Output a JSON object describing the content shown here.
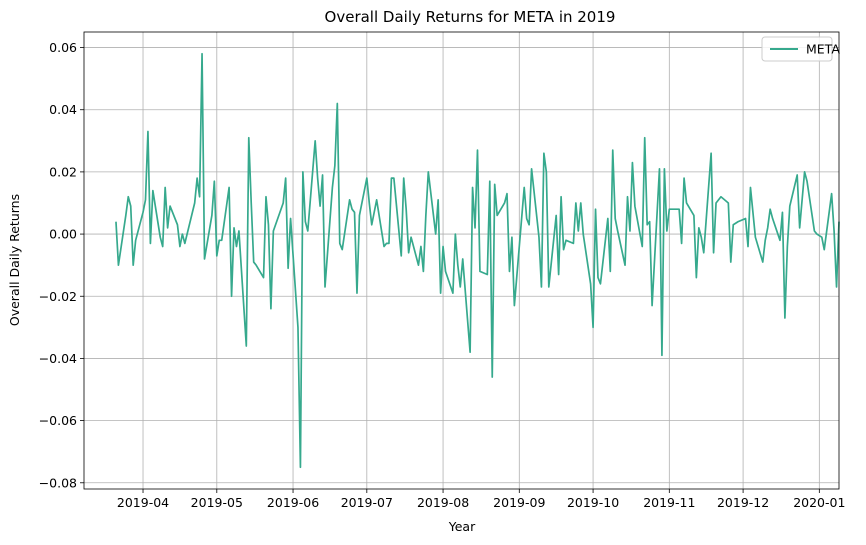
{
  "chart_data": {
    "type": "line",
    "title": "Overall Daily Returns for META in 2019",
    "xlabel": "Year",
    "ylabel": "Overall Daily Returns",
    "xlim": [
      "2019-03-08",
      "2020-01-09"
    ],
    "ylim": [
      -0.082,
      0.065
    ],
    "x_ticks": [
      "2019-04-01",
      "2019-05-01",
      "2019-06-01",
      "2019-07-01",
      "2019-08-01",
      "2019-09-01",
      "2019-10-01",
      "2019-11-01",
      "2019-12-01",
      "2020-01-01"
    ],
    "x_tick_labels": [
      "2019-04",
      "2019-05",
      "2019-06",
      "2019-07",
      "2019-08",
      "2019-09",
      "2019-10",
      "2019-11",
      "2019-12",
      "2020-01"
    ],
    "y_ticks": [
      -0.08,
      -0.06,
      -0.04,
      -0.02,
      0.0,
      0.02,
      0.04,
      0.06
    ],
    "y_tick_labels": [
      "−0.08",
      "−0.06",
      "−0.04",
      "−0.02",
      "0.00",
      "0.02",
      "0.04",
      "0.06"
    ],
    "grid": true,
    "legend": "top-right",
    "series": [
      {
        "name": "META",
        "color": "#36a98d",
        "points": [
          [
            "2019-03-21",
            0.004
          ],
          [
            "2019-03-22",
            -0.01
          ],
          [
            "2019-03-25",
            0.006
          ],
          [
            "2019-03-26",
            0.012
          ],
          [
            "2019-03-27",
            0.009
          ],
          [
            "2019-03-28",
            -0.01
          ],
          [
            "2019-03-29",
            -0.002
          ],
          [
            "2019-04-01",
            0.007
          ],
          [
            "2019-04-02",
            0.011
          ],
          [
            "2019-04-03",
            0.033
          ],
          [
            "2019-04-04",
            -0.003
          ],
          [
            "2019-04-05",
            0.014
          ],
          [
            "2019-04-08",
            -0.001
          ],
          [
            "2019-04-09",
            -0.004
          ],
          [
            "2019-04-10",
            0.015
          ],
          [
            "2019-04-11",
            0.002
          ],
          [
            "2019-04-12",
            0.009
          ],
          [
            "2019-04-15",
            0.003
          ],
          [
            "2019-04-16",
            -0.004
          ],
          [
            "2019-04-17",
            0.0
          ],
          [
            "2019-04-18",
            -0.003
          ],
          [
            "2019-04-22",
            0.01
          ],
          [
            "2019-04-23",
            0.018
          ],
          [
            "2019-04-24",
            0.012
          ],
          [
            "2019-04-25",
            0.058
          ],
          [
            "2019-04-26",
            -0.008
          ],
          [
            "2019-04-29",
            0.006
          ],
          [
            "2019-04-30",
            0.017
          ],
          [
            "2019-05-01",
            -0.007
          ],
          [
            "2019-05-02",
            -0.002
          ],
          [
            "2019-05-03",
            -0.002
          ],
          [
            "2019-05-06",
            0.015
          ],
          [
            "2019-05-07",
            -0.02
          ],
          [
            "2019-05-08",
            0.002
          ],
          [
            "2019-05-09",
            -0.004
          ],
          [
            "2019-05-10",
            0.001
          ],
          [
            "2019-05-13",
            -0.036
          ],
          [
            "2019-05-14",
            0.031
          ],
          [
            "2019-05-15",
            0.01
          ],
          [
            "2019-05-16",
            -0.009
          ],
          [
            "2019-05-17",
            -0.01
          ],
          [
            "2019-05-20",
            -0.014
          ],
          [
            "2019-05-21",
            0.012
          ],
          [
            "2019-05-22",
            0.003
          ],
          [
            "2019-05-23",
            -0.024
          ],
          [
            "2019-05-24",
            0.001
          ],
          [
            "2019-05-28",
            0.01
          ],
          [
            "2019-05-29",
            0.018
          ],
          [
            "2019-05-30",
            -0.011
          ],
          [
            "2019-05-31",
            0.005
          ],
          [
            "2019-06-03",
            -0.03
          ],
          [
            "2019-06-04",
            -0.075
          ],
          [
            "2019-06-05",
            0.02
          ],
          [
            "2019-06-06",
            0.004
          ],
          [
            "2019-06-07",
            0.001
          ],
          [
            "2019-06-10",
            0.03
          ],
          [
            "2019-06-11",
            0.018
          ],
          [
            "2019-06-12",
            0.009
          ],
          [
            "2019-06-13",
            0.019
          ],
          [
            "2019-06-14",
            -0.017
          ],
          [
            "2019-06-17",
            0.015
          ],
          [
            "2019-06-18",
            0.022
          ],
          [
            "2019-06-19",
            0.042
          ],
          [
            "2019-06-20",
            -0.003
          ],
          [
            "2019-06-21",
            -0.005
          ],
          [
            "2019-06-24",
            0.011
          ],
          [
            "2019-06-25",
            0.008
          ],
          [
            "2019-06-26",
            0.007
          ],
          [
            "2019-06-27",
            -0.019
          ],
          [
            "2019-06-28",
            0.006
          ],
          [
            "2019-07-01",
            0.018
          ],
          [
            "2019-07-02",
            0.01
          ],
          [
            "2019-07-03",
            0.003
          ],
          [
            "2019-07-05",
            0.011
          ],
          [
            "2019-07-08",
            -0.004
          ],
          [
            "2019-07-09",
            -0.003
          ],
          [
            "2019-07-10",
            -0.003
          ],
          [
            "2019-07-11",
            0.018
          ],
          [
            "2019-07-12",
            0.018
          ],
          [
            "2019-07-15",
            -0.007
          ],
          [
            "2019-07-16",
            0.018
          ],
          [
            "2019-07-17",
            0.008
          ],
          [
            "2019-07-18",
            -0.006
          ],
          [
            "2019-07-19",
            -0.001
          ],
          [
            "2019-07-22",
            -0.01
          ],
          [
            "2019-07-23",
            -0.004
          ],
          [
            "2019-07-24",
            -0.012
          ],
          [
            "2019-07-25",
            0.006
          ],
          [
            "2019-07-26",
            0.02
          ],
          [
            "2019-07-29",
            0.0
          ],
          [
            "2019-07-30",
            0.011
          ],
          [
            "2019-07-31",
            -0.019
          ],
          [
            "2019-08-01",
            -0.004
          ],
          [
            "2019-08-02",
            -0.012
          ],
          [
            "2019-08-05",
            -0.019
          ],
          [
            "2019-08-06",
            0.0
          ],
          [
            "2019-08-07",
            -0.01
          ],
          [
            "2019-08-08",
            -0.017
          ],
          [
            "2019-08-09",
            -0.008
          ],
          [
            "2019-08-12",
            -0.038
          ],
          [
            "2019-08-13",
            0.015
          ],
          [
            "2019-08-14",
            0.002
          ],
          [
            "2019-08-15",
            0.027
          ],
          [
            "2019-08-16",
            -0.012
          ],
          [
            "2019-08-19",
            -0.013
          ],
          [
            "2019-08-20",
            0.017
          ],
          [
            "2019-08-21",
            -0.046
          ],
          [
            "2019-08-22",
            0.016
          ],
          [
            "2019-08-23",
            0.006
          ],
          [
            "2019-08-26",
            0.01
          ],
          [
            "2019-08-27",
            0.013
          ],
          [
            "2019-08-28",
            -0.012
          ],
          [
            "2019-08-29",
            -0.001
          ],
          [
            "2019-08-30",
            -0.023
          ],
          [
            "2019-09-03",
            0.015
          ],
          [
            "2019-09-04",
            0.005
          ],
          [
            "2019-09-05",
            0.003
          ],
          [
            "2019-09-06",
            0.021
          ],
          [
            "2019-09-09",
            -0.001
          ],
          [
            "2019-09-10",
            -0.017
          ],
          [
            "2019-09-11",
            0.026
          ],
          [
            "2019-09-12",
            0.02
          ],
          [
            "2019-09-13",
            -0.017
          ],
          [
            "2019-09-16",
            0.006
          ],
          [
            "2019-09-17",
            -0.013
          ],
          [
            "2019-09-18",
            0.012
          ],
          [
            "2019-09-19",
            -0.005
          ],
          [
            "2019-09-20",
            -0.002
          ],
          [
            "2019-09-23",
            -0.003
          ],
          [
            "2019-09-24",
            0.01
          ],
          [
            "2019-09-25",
            0.001
          ],
          [
            "2019-09-26",
            0.01
          ],
          [
            "2019-09-27",
            0.0
          ],
          [
            "2019-09-30",
            -0.016
          ],
          [
            "2019-10-01",
            -0.03
          ],
          [
            "2019-10-02",
            0.008
          ],
          [
            "2019-10-03",
            -0.014
          ],
          [
            "2019-10-04",
            -0.016
          ],
          [
            "2019-10-07",
            0.005
          ],
          [
            "2019-10-08",
            -0.012
          ],
          [
            "2019-10-09",
            0.027
          ],
          [
            "2019-10-10",
            0.005
          ],
          [
            "2019-10-11",
            0.001
          ],
          [
            "2019-10-14",
            -0.01
          ],
          [
            "2019-10-15",
            0.012
          ],
          [
            "2019-10-16",
            0.001
          ],
          [
            "2019-10-17",
            0.023
          ],
          [
            "2019-10-18",
            0.009
          ],
          [
            "2019-10-21",
            -0.004
          ],
          [
            "2019-10-22",
            0.031
          ],
          [
            "2019-10-23",
            0.003
          ],
          [
            "2019-10-24",
            0.004
          ],
          [
            "2019-10-25",
            -0.023
          ],
          [
            "2019-10-28",
            0.021
          ],
          [
            "2019-10-29",
            -0.039
          ],
          [
            "2019-10-30",
            0.021
          ],
          [
            "2019-10-31",
            0.001
          ],
          [
            "2019-11-01",
            0.008
          ],
          [
            "2019-11-04",
            0.008
          ],
          [
            "2019-11-05",
            0.008
          ],
          [
            "2019-11-06",
            -0.003
          ],
          [
            "2019-11-07",
            0.018
          ],
          [
            "2019-11-08",
            0.01
          ],
          [
            "2019-11-11",
            0.006
          ],
          [
            "2019-11-12",
            -0.014
          ],
          [
            "2019-11-13",
            0.002
          ],
          [
            "2019-11-14",
            -0.001
          ],
          [
            "2019-11-15",
            -0.006
          ],
          [
            "2019-11-18",
            0.026
          ],
          [
            "2019-11-19",
            -0.006
          ],
          [
            "2019-11-20",
            0.01
          ],
          [
            "2019-11-21",
            0.011
          ],
          [
            "2019-11-22",
            0.012
          ],
          [
            "2019-11-25",
            0.01
          ],
          [
            "2019-11-26",
            -0.009
          ],
          [
            "2019-11-27",
            0.003
          ],
          [
            "2019-11-29",
            0.004
          ],
          [
            "2019-12-02",
            0.005
          ],
          [
            "2019-12-03",
            -0.004
          ],
          [
            "2019-12-04",
            0.015
          ],
          [
            "2019-12-05",
            0.007
          ],
          [
            "2019-12-06",
            -0.001
          ],
          [
            "2019-12-09",
            -0.009
          ],
          [
            "2019-12-10",
            -0.002
          ],
          [
            "2019-12-11",
            0.002
          ],
          [
            "2019-12-12",
            0.008
          ],
          [
            "2019-12-13",
            0.005
          ],
          [
            "2019-12-16",
            -0.002
          ],
          [
            "2019-12-17",
            0.007
          ],
          [
            "2019-12-18",
            -0.027
          ],
          [
            "2019-12-19",
            -0.004
          ],
          [
            "2019-12-20",
            0.009
          ],
          [
            "2019-12-23",
            0.019
          ],
          [
            "2019-12-24",
            0.002
          ],
          [
            "2019-12-26",
            0.02
          ],
          [
            "2019-12-27",
            0.017
          ],
          [
            "2019-12-30",
            0.001
          ],
          [
            "2019-12-31",
            0.0
          ],
          [
            "2020-01-02",
            -0.001
          ],
          [
            "2020-01-03",
            -0.005
          ],
          [
            "2020-01-06",
            0.013
          ],
          [
            "2020-01-07",
            0.001
          ],
          [
            "2020-01-08",
            -0.017
          ],
          [
            "2020-01-09",
            0.004
          ]
        ]
      }
    ]
  }
}
